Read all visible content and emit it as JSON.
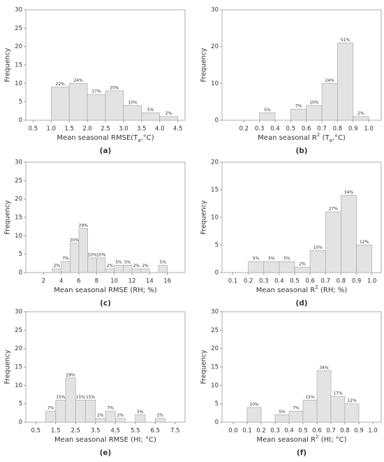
{
  "chart_data": [
    {
      "type": "histogram",
      "panel_label": "(a)",
      "y_label": "Frequency",
      "x_label": [
        {
          "text": "Mean seasonal RMSE(T",
          "baseline": "normal"
        },
        {
          "text": "a",
          "baseline": "sub"
        },
        {
          "text": ",°C)",
          "baseline": "normal"
        }
      ],
      "bins": [
        1.0,
        1.5,
        2.0,
        2.5,
        3.0,
        3.5,
        4.0,
        4.5
      ],
      "values": [
        9,
        10,
        7,
        8,
        4,
        2,
        1
      ],
      "value_labels": [
        "22%",
        "24%",
        "17%",
        "20%",
        "10%",
        "5%",
        "2%"
      ],
      "xlim": [
        0.3,
        4.7
      ],
      "xticks": [
        0.5,
        {
          "value": 1,
          "label": "1.0"
        },
        1.5,
        {
          "value": 2,
          "label": "2.0"
        },
        2.5,
        {
          "value": 3,
          "label": "3.0"
        },
        3.5,
        {
          "value": 4,
          "label": "4.0"
        },
        4.5
      ],
      "ylim": [
        0,
        30
      ],
      "yticks": [
        0,
        5,
        10,
        15,
        20,
        25,
        30
      ],
      "color": "#e3e3e3"
    },
    {
      "type": "histogram",
      "panel_label": "(b)",
      "y_label": "Frequency",
      "x_label": [
        {
          "text": "Mean seasonal R",
          "baseline": "normal"
        },
        {
          "text": "2",
          "baseline": "super"
        },
        {
          "text": " (T",
          "baseline": "normal"
        },
        {
          "text": "a",
          "baseline": "sub"
        },
        {
          "text": ",°C)",
          "baseline": "normal"
        }
      ],
      "bins": [
        0.3,
        0.4,
        0.5,
        0.6,
        0.7,
        0.8,
        0.9,
        1.0
      ],
      "values": [
        2,
        0,
        3,
        4,
        10,
        21,
        1
      ],
      "value_labels": [
        "5%",
        null,
        "7%",
        "10%",
        "24%",
        "51%",
        "2%"
      ],
      "xlim": [
        0.06,
        1.08
      ],
      "xticks": [
        0.2,
        0.3,
        0.4,
        0.5,
        0.6,
        0.7,
        0.8,
        0.9,
        {
          "value": 1,
          "label": "1.0"
        }
      ],
      "ylim": [
        0,
        30
      ],
      "yticks": [
        0,
        10,
        20,
        30
      ],
      "color": "#e3e3e3"
    },
    {
      "type": "histogram",
      "panel_label": "(c)",
      "y_label": "Frequency",
      "x_label": [
        {
          "text": "Mean seasonal RMSE (RH; %)",
          "baseline": "normal"
        }
      ],
      "bins": [
        3,
        4,
        5,
        6,
        7,
        8,
        9,
        10,
        11,
        12,
        13,
        14,
        15,
        16
      ],
      "values": [
        1,
        3,
        8,
        12,
        4,
        4,
        1,
        2,
        2,
        1,
        1,
        0,
        2
      ],
      "value_labels": [
        "2%",
        "7%",
        "20%",
        "29%",
        "10%",
        "10%",
        "2%",
        "5%",
        "5%",
        "2%",
        "2%",
        null,
        "5%"
      ],
      "xlim": [
        0,
        18
      ],
      "xticks": [
        2,
        4,
        6,
        8,
        10,
        12,
        14,
        16
      ],
      "ylim": [
        0,
        30
      ],
      "yticks": [
        0,
        5,
        10,
        15,
        20,
        25,
        30
      ],
      "color": "#e3e3e3"
    },
    {
      "type": "histogram",
      "panel_label": "(d)",
      "y_label": "Frequency",
      "x_label": [
        {
          "text": "Mean seasonal R",
          "baseline": "normal"
        },
        {
          "text": "2",
          "baseline": "super"
        },
        {
          "text": " (RH; %)",
          "baseline": "normal"
        }
      ],
      "bins": [
        0.2,
        0.3,
        0.4,
        0.5,
        0.6,
        0.7,
        0.8,
        0.9,
        1.0
      ],
      "values": [
        2,
        2,
        2,
        1,
        4,
        11,
        14,
        5
      ],
      "value_labels": [
        "5%",
        "5%",
        "5%",
        "2%",
        "10%",
        "27%",
        "34%",
        "12%"
      ],
      "xlim": [
        0.03,
        1.06
      ],
      "xticks": [
        0.1,
        0.2,
        0.3,
        0.4,
        0.5,
        0.6,
        0.7,
        0.8,
        0.9,
        {
          "value": 1,
          "label": "1.0"
        }
      ],
      "ylim": [
        0,
        20
      ],
      "yticks": [
        0,
        5,
        10,
        15,
        20
      ],
      "color": "#e3e3e3"
    },
    {
      "type": "histogram",
      "panel_label": "(e)",
      "y_label": "Frequency",
      "x_label": [
        {
          "text": "Mean seasonal RMSE (HI; °C)",
          "baseline": "normal"
        }
      ],
      "bins": [
        1.0,
        1.5,
        2.0,
        2.5,
        3.0,
        3.5,
        4.0,
        4.5,
        5.0,
        5.5,
        6.0,
        6.5,
        7.0
      ],
      "values": [
        3,
        6,
        12,
        6,
        6,
        1,
        3,
        1,
        0,
        2,
        0,
        1
      ],
      "value_labels": [
        "7%",
        "15%",
        "29%",
        "15%",
        "15%",
        "2%",
        "7%",
        "2%",
        null,
        "5%",
        null,
        "2%"
      ],
      "xlim": [
        0,
        8
      ],
      "xticks": [
        0.5,
        1.5,
        2.5,
        3.5,
        4.5,
        5.5,
        6.5,
        7.5
      ],
      "ylim": [
        0,
        30
      ],
      "yticks": [
        0,
        5,
        10,
        15,
        20,
        25,
        30
      ],
      "color": "#e3e3e3"
    },
    {
      "type": "histogram",
      "panel_label": "(f)",
      "y_label": "Frequency",
      "x_label": [
        {
          "text": "Mean seasonal R",
          "baseline": "normal"
        },
        {
          "text": "2",
          "baseline": "super"
        },
        {
          "text": " (HI; °C)",
          "baseline": "normal"
        }
      ],
      "bins": [
        0.1,
        0.2,
        0.3,
        0.4,
        0.5,
        0.6,
        0.7,
        0.8,
        0.9
      ],
      "values": [
        4,
        0,
        2,
        3,
        6,
        14,
        7,
        5
      ],
      "value_labels": [
        "10%",
        null,
        "5%",
        "7%",
        "15%",
        "34%",
        "17%",
        "12%"
      ],
      "xlim": [
        -0.08,
        1.06
      ],
      "xticks": [
        {
          "value": 0,
          "label": "0.0"
        },
        0.1,
        0.2,
        0.3,
        0.4,
        0.5,
        0.6,
        0.7,
        0.8,
        0.9,
        {
          "value": 1,
          "label": "1.0"
        }
      ],
      "ylim": [
        0,
        30
      ],
      "yticks": [
        0,
        5,
        10,
        15,
        20,
        25,
        30
      ],
      "color": "#e3e3e3"
    }
  ]
}
